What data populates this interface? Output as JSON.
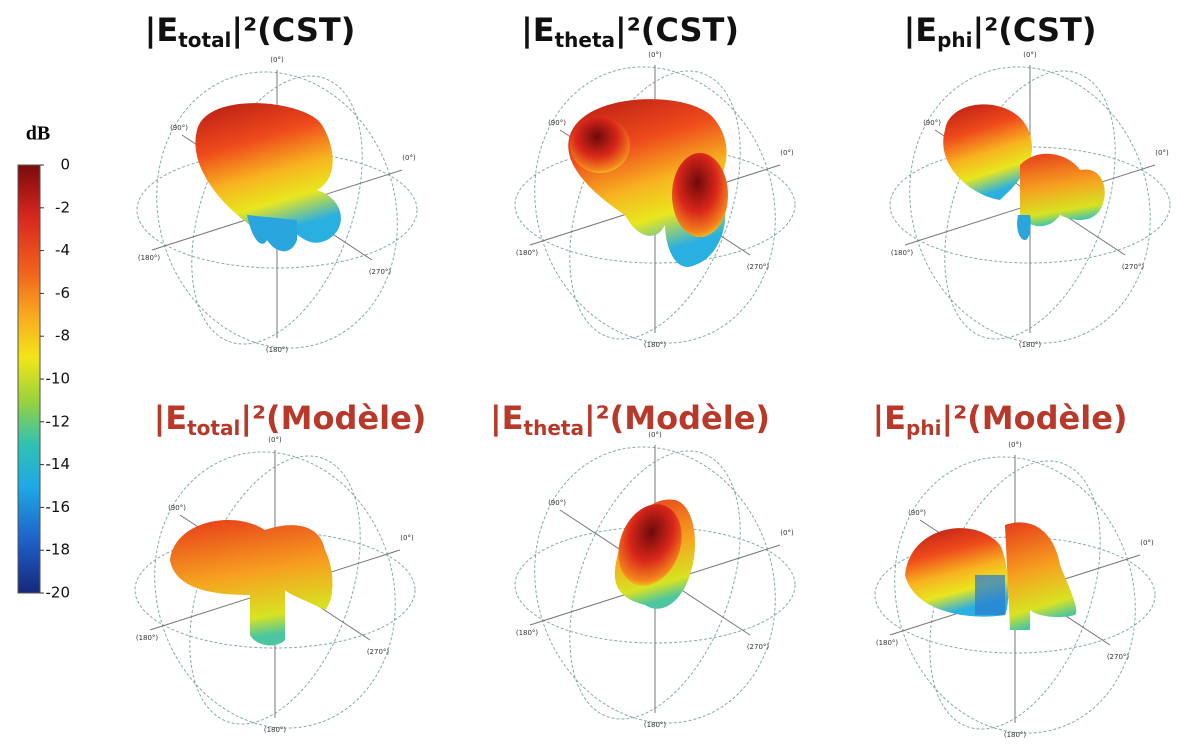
{
  "colorbar": {
    "label": "dB",
    "lim": [
      -20,
      0
    ],
    "ticks": [
      0,
      -2,
      -4,
      -6,
      -8,
      -10,
      -12,
      -14,
      -16,
      -18,
      -20
    ]
  },
  "panels": [
    {
      "title": {
        "prefix": "|E",
        "sub": "total",
        "suffix": "|²(CST)"
      },
      "title_color": "#111111",
      "axis_labels": [
        "(0°)",
        "(90°)",
        "(0°)",
        "(180°)",
        "(270°)",
        "(180°)"
      ]
    },
    {
      "title": {
        "prefix": "|E",
        "sub": "theta",
        "suffix": "|²(CST)"
      },
      "title_color": "#111111",
      "axis_labels": [
        "(0°)",
        "(90°)",
        "(0°)",
        "(180°)",
        "(270°)",
        "(180°)"
      ]
    },
    {
      "title": {
        "prefix": "|E",
        "sub": "phi",
        "suffix": "|²(CST)"
      },
      "title_color": "#111111",
      "axis_labels": [
        "(0°)",
        "(90°)",
        "(0°)",
        "(180°)",
        "(270°)",
        "(180°)"
      ]
    },
    {
      "title": {
        "prefix": "|E",
        "sub": "total",
        "suffix": "|²(Modèle)"
      },
      "title_color": "#b8392a",
      "axis_labels": [
        "(0°)",
        "(90°)",
        "(0°)",
        "(180°)",
        "(270°)",
        "(180°)"
      ]
    },
    {
      "title": {
        "prefix": "|E",
        "sub": "theta",
        "suffix": "|²(Modèle)"
      },
      "title_color": "#b8392a",
      "axis_labels": [
        "(0°)",
        "(90°)",
        "(0°)",
        "(180°)",
        "(270°)",
        "(180°)"
      ]
    },
    {
      "title": {
        "prefix": "|E",
        "sub": "phi",
        "suffix": "|²(Modèle)"
      },
      "title_color": "#b8392a",
      "axis_labels": [
        "(0°)",
        "(90°)",
        "(0°)",
        "(180°)",
        "(270°)",
        "(180°)"
      ]
    }
  ]
}
